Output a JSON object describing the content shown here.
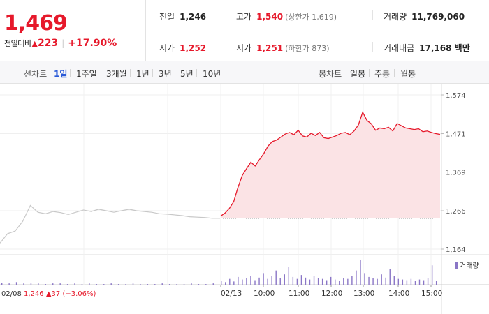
{
  "quote": {
    "price": "1,469",
    "change_label": "전일대비",
    "change_arrow": "▲",
    "change_amount": "223",
    "change_percent": "+17.90%"
  },
  "stats": {
    "prev_close_label": "전일",
    "prev_close": "1,246",
    "open_label": "시가",
    "open": "1,252",
    "high_label": "고가",
    "high": "1,540",
    "upper_limit": "(상한가 1,619)",
    "low_label": "저가",
    "low": "1,251",
    "lower_limit": "(하한가 873)",
    "volume_label": "거래량",
    "volume": "11,769,060",
    "trade_value_label": "거래대금",
    "trade_value": "17,168 백만"
  },
  "toolbar": {
    "line_label": "선차트",
    "periods": [
      "1일",
      "1주일",
      "3개월",
      "1년",
      "3년",
      "5년",
      "10년"
    ],
    "active_period": "1일",
    "candle_label": "봉차트",
    "candles": [
      "일봉",
      "주봉",
      "월봉"
    ]
  },
  "chart_data": {
    "type": "line",
    "y_ticks": [
      1574,
      1471,
      1369,
      1266,
      1164
    ],
    "y_tick_labels": [
      "1,574",
      "1,471",
      "1,369",
      "1,266",
      "1,164"
    ],
    "ylim": [
      1164,
      1574
    ],
    "prev_close_line": 1246,
    "x_labels": [
      "02/08",
      "02/13",
      "10:00",
      "11:00",
      "12:00",
      "13:00",
      "14:00",
      "15:00"
    ],
    "prev_day_series": {
      "date": "02/08",
      "values": [
        1180,
        1205,
        1212,
        1238,
        1280,
        1262,
        1258,
        1264,
        1261,
        1256,
        1262,
        1268,
        1264,
        1270,
        1266,
        1262,
        1266,
        1270,
        1266,
        1264,
        1262,
        1258,
        1257,
        1255,
        1253,
        1250,
        1249,
        1248,
        1246,
        1246
      ]
    },
    "today_series": {
      "date": "02/13",
      "values": [
        1252,
        1260,
        1272,
        1290,
        1328,
        1360,
        1378,
        1395,
        1385,
        1402,
        1418,
        1438,
        1450,
        1454,
        1462,
        1470,
        1474,
        1468,
        1480,
        1465,
        1462,
        1472,
        1466,
        1474,
        1460,
        1458,
        1462,
        1466,
        1472,
        1474,
        1468,
        1478,
        1494,
        1528,
        1506,
        1497,
        1480,
        1486,
        1484,
        1488,
        1478,
        1498,
        1492,
        1486,
        1484,
        1482,
        1484,
        1476,
        1478,
        1474,
        1471,
        1469
      ]
    },
    "prev_info": {
      "date": "02/08",
      "close": "1,246",
      "arrow": "▲",
      "change": "37",
      "percent": "(+3.06%)"
    },
    "volume_legend": "거래량",
    "volume_bars_today": [
      6,
      4,
      9,
      5,
      12,
      8,
      10,
      14,
      7,
      11,
      18,
      9,
      13,
      22,
      10,
      16,
      28,
      12,
      9,
      15,
      11,
      8,
      14,
      10,
      9,
      7,
      12,
      8,
      6,
      10,
      9,
      13,
      22,
      38,
      18,
      12,
      10,
      9,
      16,
      11,
      24,
      13,
      9,
      8,
      7,
      9,
      6,
      8,
      7,
      10,
      30,
      6
    ],
    "volume_bars_prev": [
      3,
      2,
      4,
      2,
      3,
      2,
      1,
      2,
      2,
      1,
      2,
      1,
      2,
      1,
      1,
      2,
      1,
      1,
      2,
      1,
      1,
      1,
      2,
      1,
      1,
      1,
      2,
      1,
      1,
      2
    ],
    "colors": {
      "up": "#e6192b",
      "fill": "#fbe3e5",
      "prev": "#c8c8c8",
      "volume": "#8a76c6"
    }
  }
}
